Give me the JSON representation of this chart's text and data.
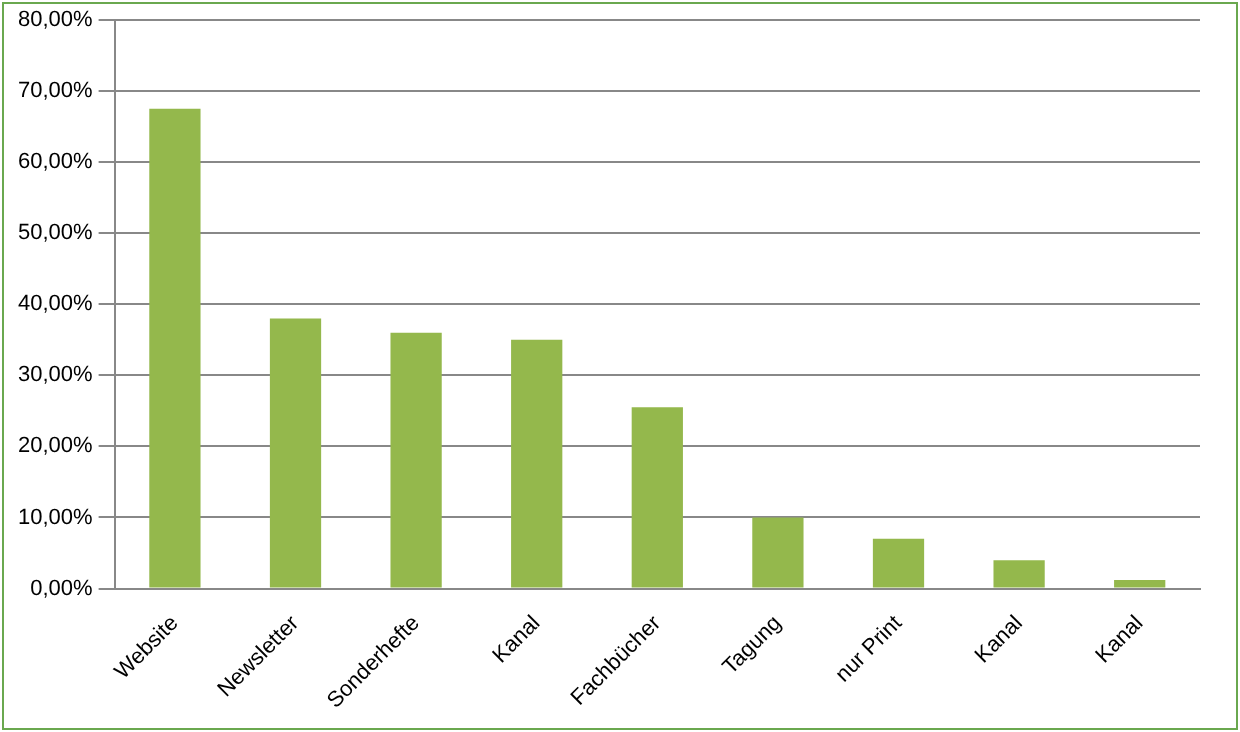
{
  "chart_data": {
    "type": "bar",
    "categories": [
      "Website",
      "Newsletter",
      "Sonderhefte",
      "Kanal",
      "Fachbücher",
      "Tagung",
      "nur Print",
      "Kanal",
      "Kanal"
    ],
    "values": [
      67.5,
      38,
      36,
      35,
      25.5,
      10,
      7,
      4,
      1.2
    ],
    "color": "#94b84c",
    "ylim": [
      0,
      80
    ],
    "yticks": [
      {
        "value": 0,
        "label": "0,00%"
      },
      {
        "value": 10,
        "label": "10,00%"
      },
      {
        "value": 20,
        "label": "20,00%"
      },
      {
        "value": 30,
        "label": "30,00%"
      },
      {
        "value": 40,
        "label": "40,00%"
      },
      {
        "value": 50,
        "label": "50,00%"
      },
      {
        "value": 60,
        "label": "60,00%"
      },
      {
        "value": 70,
        "label": "70,00%"
      },
      {
        "value": 80,
        "label": "80,00%"
      }
    ],
    "grid": "y"
  }
}
